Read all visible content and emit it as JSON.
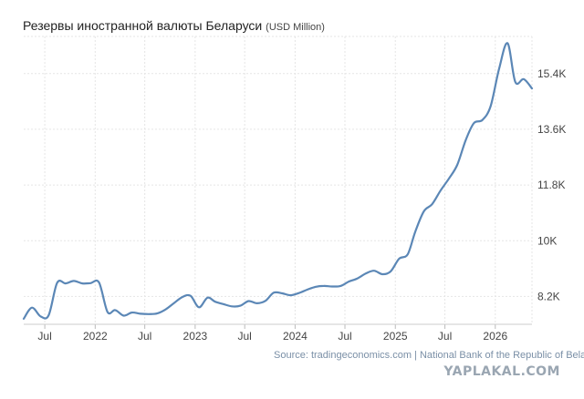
{
  "header": {
    "title": "Резервы иностранной валюты Беларуси",
    "unit": "(USD Million)"
  },
  "footer": {
    "source": "Source: tradingeconomics.com | National Bank of the Republic of Belarus"
  },
  "watermark": {
    "text": "YAPLAKAL.COM"
  },
  "colors": {
    "line": "#5b87b6",
    "grid": "#e5e5e5",
    "axis_text": "#444444"
  },
  "chart_data": {
    "type": "line",
    "title": "Резервы иностранной валюты Беларуси",
    "unit": "(USD Million)",
    "xlabel": "",
    "ylabel": "",
    "y_axis_side": "right",
    "grid": true,
    "ylim": [
      7300,
      16600
    ],
    "xlim": [
      "2021-04-15",
      "2026-05-15"
    ],
    "y_ticks": [
      {
        "value": 8200,
        "label": "8.2K"
      },
      {
        "value": 10000,
        "label": "10K"
      },
      {
        "value": 11800,
        "label": "11.8K"
      },
      {
        "value": 13600,
        "label": "13.6K"
      },
      {
        "value": 15400,
        "label": "15.4K"
      }
    ],
    "x_ticks": [
      {
        "date": "2021-07-01",
        "label": "Jul"
      },
      {
        "date": "2022-01-01",
        "label": "2022"
      },
      {
        "date": "2022-07-01",
        "label": "Jul"
      },
      {
        "date": "2023-01-01",
        "label": "2023"
      },
      {
        "date": "2023-07-01",
        "label": "Jul"
      },
      {
        "date": "2024-01-01",
        "label": "2024"
      },
      {
        "date": "2024-07-01",
        "label": "Jul"
      },
      {
        "date": "2025-01-01",
        "label": "2025"
      },
      {
        "date": "2025-07-01",
        "label": "Jul"
      },
      {
        "date": "2026-01-01",
        "label": "2026"
      }
    ],
    "series": [
      {
        "points": [
          [
            "2021-04-15",
            7480
          ],
          [
            "2021-05-15",
            7840
          ],
          [
            "2021-06-15",
            7560
          ],
          [
            "2021-07-15",
            7590
          ],
          [
            "2021-08-15",
            8640
          ],
          [
            "2021-09-15",
            8620
          ],
          [
            "2021-10-15",
            8700
          ],
          [
            "2021-11-15",
            8620
          ],
          [
            "2021-12-15",
            8630
          ],
          [
            "2022-01-15",
            8650
          ],
          [
            "2022-02-15",
            7700
          ],
          [
            "2022-03-15",
            7760
          ],
          [
            "2022-04-15",
            7580
          ],
          [
            "2022-05-15",
            7680
          ],
          [
            "2022-06-15",
            7640
          ],
          [
            "2022-07-15",
            7630
          ],
          [
            "2022-08-15",
            7650
          ],
          [
            "2022-09-15",
            7780
          ],
          [
            "2022-10-15",
            7980
          ],
          [
            "2022-11-15",
            8180
          ],
          [
            "2022-12-15",
            8220
          ],
          [
            "2023-01-15",
            7850
          ],
          [
            "2023-02-15",
            8160
          ],
          [
            "2023-03-15",
            8030
          ],
          [
            "2023-04-15",
            7950
          ],
          [
            "2023-05-15",
            7880
          ],
          [
            "2023-06-15",
            7900
          ],
          [
            "2023-07-15",
            8050
          ],
          [
            "2023-08-15",
            7980
          ],
          [
            "2023-09-15",
            8060
          ],
          [
            "2023-10-15",
            8320
          ],
          [
            "2023-11-15",
            8300
          ],
          [
            "2023-12-15",
            8240
          ],
          [
            "2024-01-15",
            8310
          ],
          [
            "2024-02-15",
            8420
          ],
          [
            "2024-03-15",
            8510
          ],
          [
            "2024-04-15",
            8540
          ],
          [
            "2024-05-15",
            8520
          ],
          [
            "2024-06-15",
            8540
          ],
          [
            "2024-07-15",
            8680
          ],
          [
            "2024-08-15",
            8780
          ],
          [
            "2024-09-15",
            8940
          ],
          [
            "2024-10-15",
            9030
          ],
          [
            "2024-11-15",
            8920
          ],
          [
            "2024-12-15",
            9010
          ],
          [
            "2025-01-15",
            9420
          ],
          [
            "2025-02-15",
            9560
          ],
          [
            "2025-03-15",
            10300
          ],
          [
            "2025-04-15",
            10950
          ],
          [
            "2025-05-15",
            11180
          ],
          [
            "2025-06-15",
            11620
          ],
          [
            "2025-07-15",
            12000
          ],
          [
            "2025-08-15",
            12450
          ],
          [
            "2025-09-15",
            13250
          ],
          [
            "2025-10-15",
            13800
          ],
          [
            "2025-11-15",
            13900
          ],
          [
            "2025-12-15",
            14350
          ],
          [
            "2026-01-15",
            15560
          ],
          [
            "2026-02-15",
            16380
          ],
          [
            "2026-03-15",
            15130
          ],
          [
            "2026-04-15",
            15220
          ],
          [
            "2026-05-15",
            14920
          ]
        ]
      }
    ]
  }
}
